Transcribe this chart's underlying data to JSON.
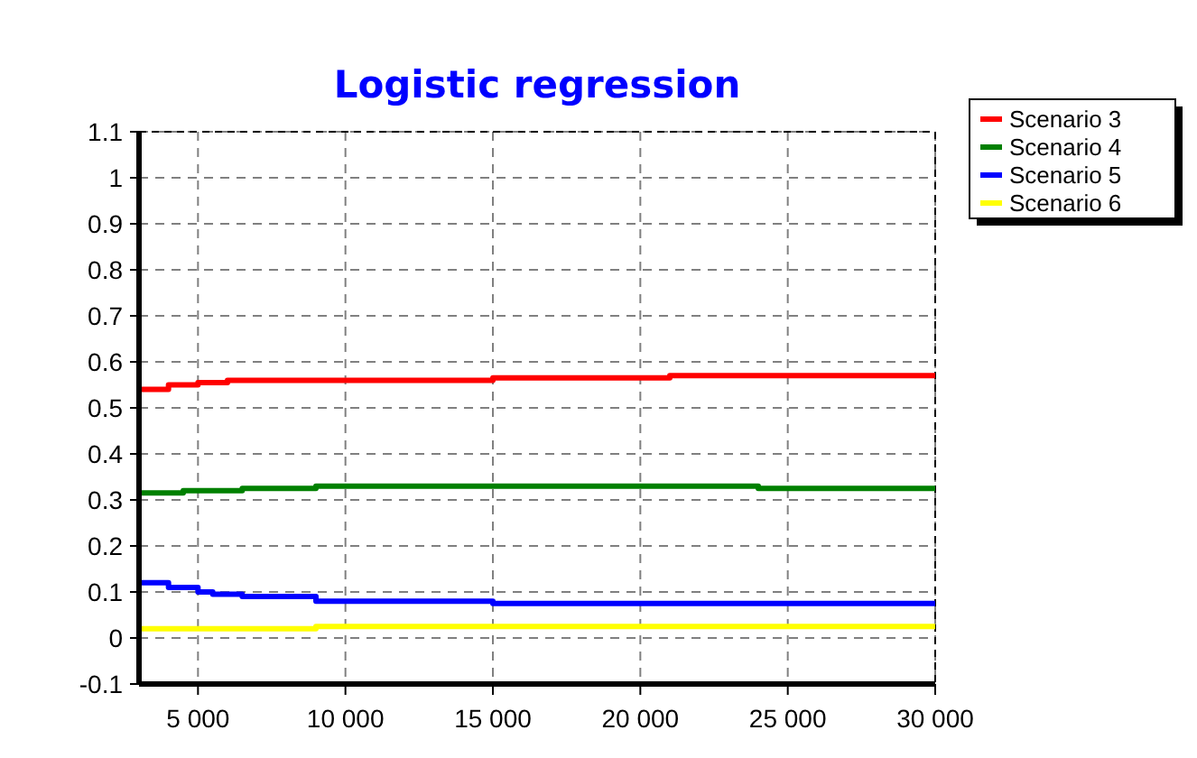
{
  "chart_data": {
    "type": "step",
    "title": "Logistic regression",
    "xlim": [
      3000,
      30000
    ],
    "xticks": [
      {
        "value": 5000,
        "label": "5 000"
      },
      {
        "value": 10000,
        "label": "10 000"
      },
      {
        "value": 15000,
        "label": "15 000"
      },
      {
        "value": 20000,
        "label": "20 000"
      },
      {
        "value": 25000,
        "label": "25 000"
      },
      {
        "value": 30000,
        "label": "30 000"
      }
    ],
    "ylim": [
      -0.1,
      1.1
    ],
    "yticks": [
      -0.1,
      0,
      0.1,
      0.2,
      0.3,
      0.4,
      0.5,
      0.6,
      0.7,
      0.8,
      0.9,
      1,
      1.1
    ],
    "grid": true,
    "legend": "top right",
    "line_style": "solid",
    "marker": "none",
    "series": [
      {
        "name": "Scenario 3",
        "color": "#ff0000",
        "x": [
          3000,
          4000,
          5000,
          6000,
          15000,
          21000,
          30000
        ],
        "values": [
          0.54,
          0.55,
          0.555,
          0.56,
          0.565,
          0.57,
          0.57
        ]
      },
      {
        "name": "Scenario 4",
        "color": "#008000",
        "x": [
          3000,
          4500,
          6500,
          9000,
          24000,
          30000
        ],
        "values": [
          0.315,
          0.32,
          0.325,
          0.33,
          0.325,
          0.325
        ]
      },
      {
        "name": "Scenario 5",
        "color": "#0000ff",
        "x": [
          3000,
          4000,
          5000,
          5500,
          6500,
          9000,
          15000,
          30000
        ],
        "values": [
          0.12,
          0.11,
          0.1,
          0.095,
          0.09,
          0.08,
          0.075,
          0.075
        ]
      },
      {
        "name": "Scenario 6",
        "color": "#ffff00",
        "x": [
          3000,
          9000,
          30000
        ],
        "values": [
          0.02,
          0.025,
          0.025
        ]
      }
    ]
  }
}
